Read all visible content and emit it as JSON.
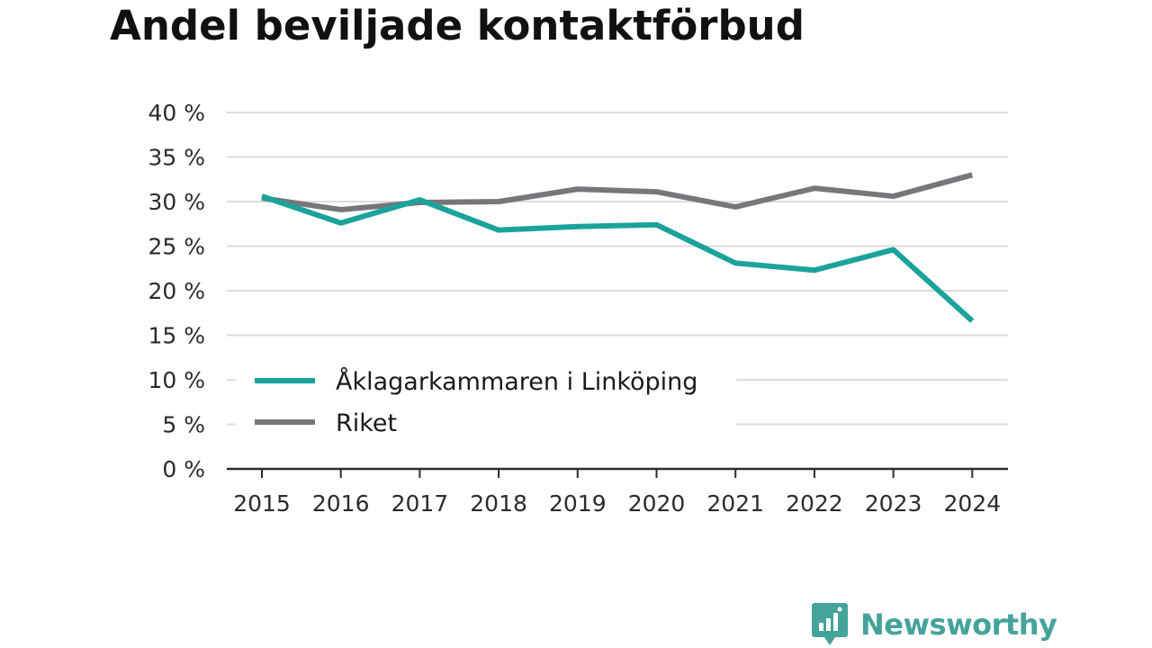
{
  "title": "Andel beviljade kontaktförbud",
  "brand": {
    "name": "Newsworthy",
    "icon": "newsworthy-logo-icon",
    "color": "#44a39a"
  },
  "chart_data": {
    "type": "line",
    "title": "Andel beviljade kontaktförbud",
    "xlabel": "",
    "ylabel": "",
    "x": [
      "2015",
      "2016",
      "2017",
      "2018",
      "2019",
      "2020",
      "2021",
      "2022",
      "2023",
      "2024"
    ],
    "yticks": [
      "0 %",
      "5 %",
      "10 %",
      "15 %",
      "20 %",
      "25 %",
      "30 %",
      "35 %",
      "40 %"
    ],
    "ylim": [
      0,
      40
    ],
    "grid": true,
    "legend_position": "bottom-left",
    "series": [
      {
        "name": "Åklagarkammaren i Linköping",
        "color": "#1aa39a",
        "values": [
          30.6,
          27.6,
          30.2,
          26.8,
          27.2,
          27.4,
          23.1,
          22.3,
          24.6,
          16.6
        ]
      },
      {
        "name": "Riket",
        "color": "#77767b",
        "values": [
          30.4,
          29.1,
          29.9,
          30.0,
          31.4,
          31.1,
          29.4,
          31.5,
          30.6,
          33.0
        ]
      }
    ]
  }
}
